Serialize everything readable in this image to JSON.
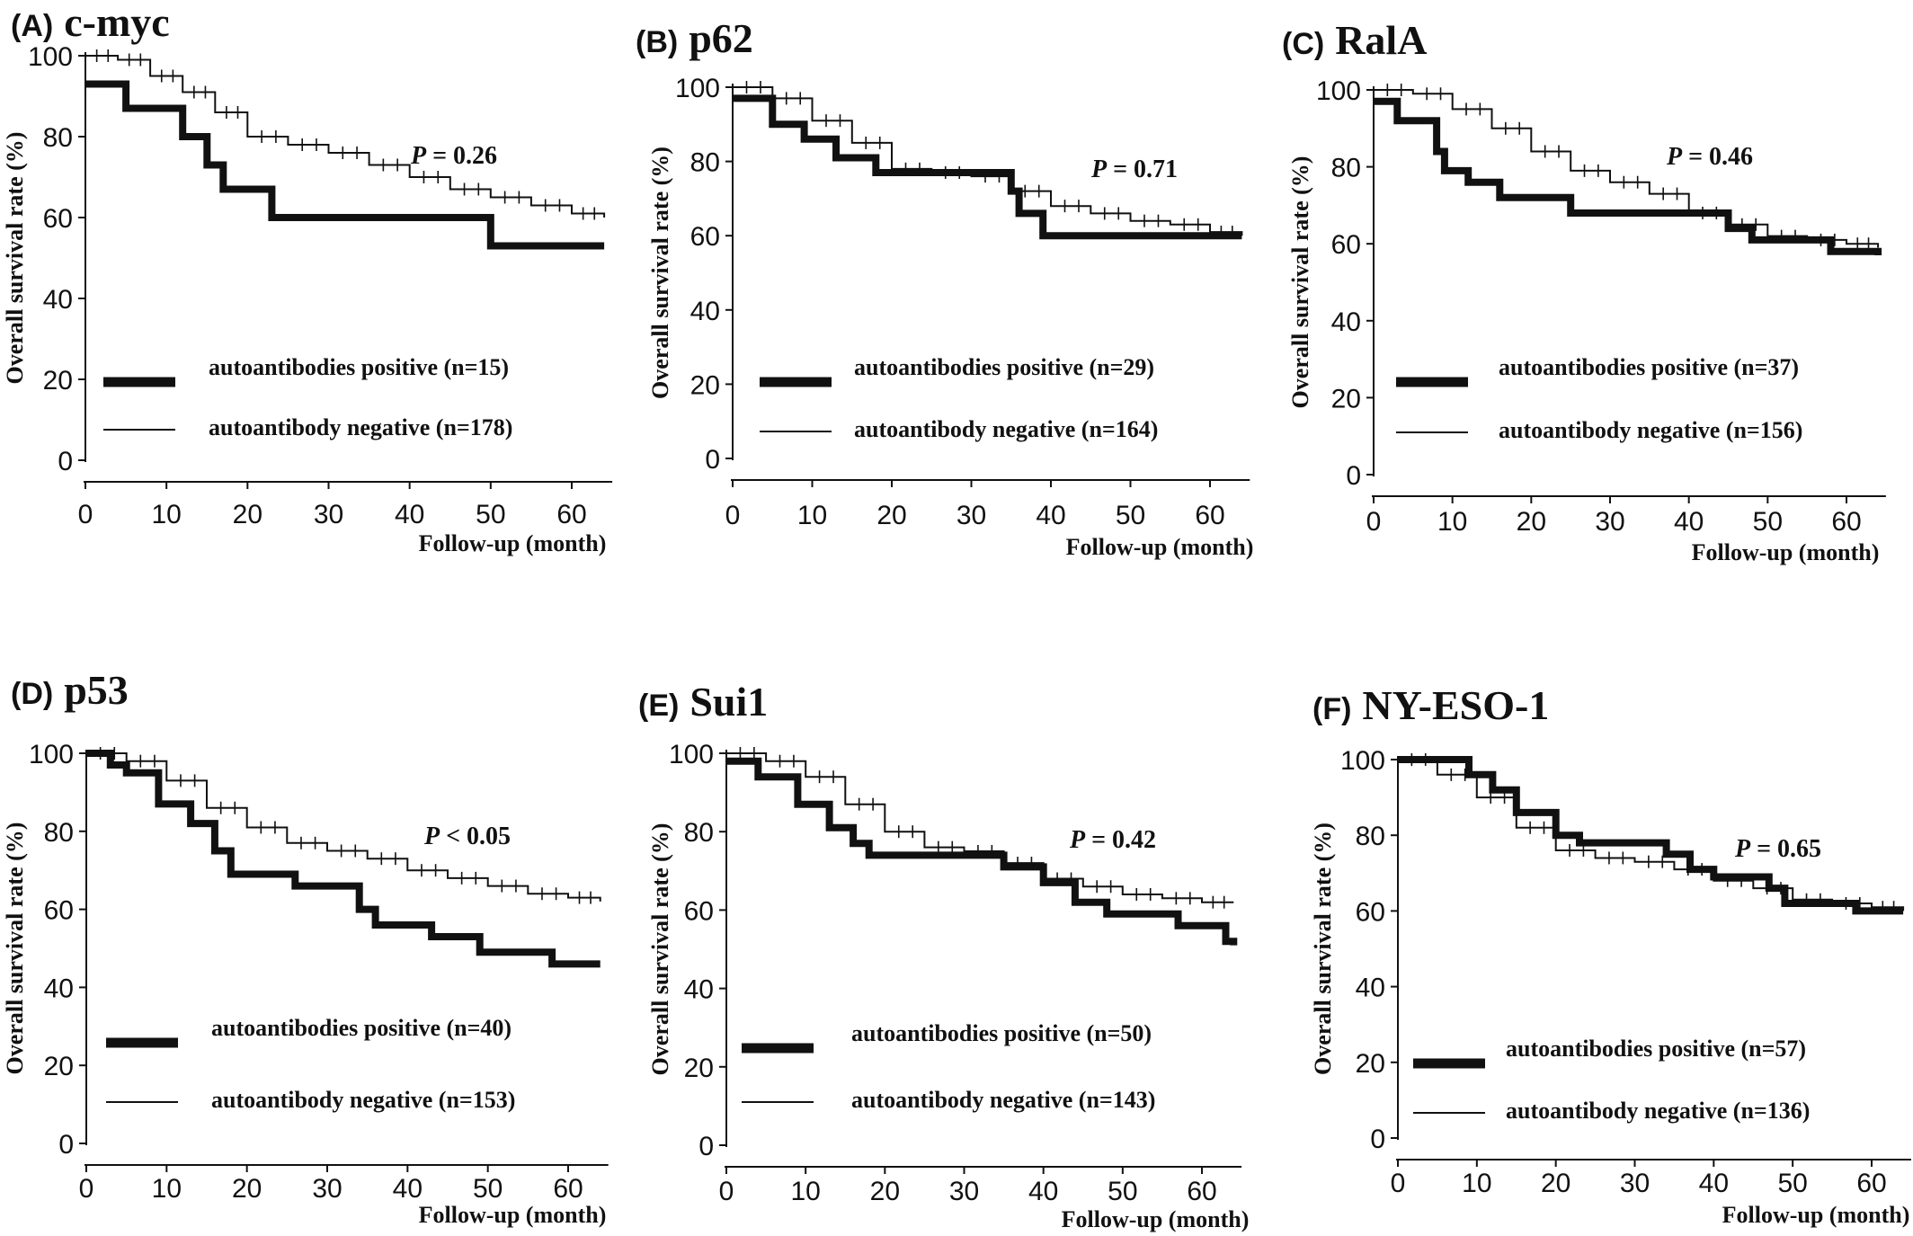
{
  "figure": {
    "y_axis_label": "Overall survival rate (%)",
    "x_axis_label": "Follow-up (month)",
    "y_ticks": [
      0,
      20,
      40,
      60,
      80,
      100
    ],
    "x_ticks": [
      0,
      10,
      20,
      30,
      40,
      50,
      60
    ]
  },
  "chart_data": [
    {
      "type": "line",
      "panel": "(A)",
      "title": "c-myc",
      "p_value": {
        "symbol": "P",
        "text": " = 0.26"
      },
      "xlabel": "Follow-up (month)",
      "ylabel": "Overall survival rate (%)",
      "xlim": [
        0,
        65
      ],
      "ylim": [
        0,
        100
      ],
      "x_ticks": [
        "0",
        "10",
        "20",
        "30",
        "40",
        "50",
        "60"
      ],
      "y_ticks": [
        "0",
        "20",
        "40",
        "60",
        "80",
        "100"
      ],
      "series": [
        {
          "name": "autoantibodies positive (n=15)",
          "style": "thick",
          "x": [
            0,
            5,
            12,
            15,
            17,
            23,
            50,
            64
          ],
          "y": [
            93,
            87,
            80,
            73,
            67,
            60,
            53,
            53
          ]
        },
        {
          "name": "autoantibody negative (n=178)",
          "style": "thin",
          "x": [
            0,
            4,
            8,
            12,
            16,
            20,
            25,
            30,
            35,
            40,
            45,
            50,
            55,
            60,
            64
          ],
          "y": [
            100,
            99,
            95,
            91,
            86,
            80,
            78,
            76,
            73,
            70,
            67,
            65,
            63,
            61,
            60
          ]
        }
      ]
    },
    {
      "type": "line",
      "panel": "(B)",
      "title": "p62",
      "p_value": {
        "symbol": "P",
        "text": " = 0.71"
      },
      "xlabel": "Follow-up (month)",
      "ylabel": "Overall survival rate (%)",
      "xlim": [
        0,
        65
      ],
      "ylim": [
        0,
        100
      ],
      "x_ticks": [
        "0",
        "10",
        "20",
        "30",
        "40",
        "50",
        "60"
      ],
      "y_ticks": [
        "0",
        "20",
        "40",
        "60",
        "80",
        "100"
      ],
      "series": [
        {
          "name": "autoantibodies positive (n=29)",
          "style": "thick",
          "x": [
            0,
            5,
            9,
            13,
            18,
            35,
            36,
            39,
            64
          ],
          "y": [
            97,
            90,
            86,
            81,
            77,
            72,
            66,
            60,
            60
          ]
        },
        {
          "name": "autoantibody negative (n=164)",
          "style": "thin",
          "x": [
            0,
            5,
            10,
            15,
            20,
            25,
            30,
            35,
            40,
            45,
            50,
            55,
            60,
            64
          ],
          "y": [
            100,
            97,
            91,
            85,
            78,
            77,
            76,
            72,
            68,
            66,
            64,
            63,
            61,
            60
          ]
        }
      ]
    },
    {
      "type": "line",
      "panel": "(C)",
      "title": "RalA",
      "p_value": {
        "symbol": "P",
        "text": " = 0.46"
      },
      "xlabel": "Follow-up (month)",
      "ylabel": "Overall survival rate (%)",
      "xlim": [
        0,
        65
      ],
      "ylim": [
        0,
        100
      ],
      "x_ticks": [
        "0",
        "10",
        "20",
        "30",
        "40",
        "50",
        "60"
      ],
      "y_ticks": [
        "0",
        "20",
        "40",
        "60",
        "80",
        "100"
      ],
      "series": [
        {
          "name": "autoantibodies positive (n=37)",
          "style": "thick",
          "x": [
            0,
            3,
            8,
            9,
            12,
            16,
            25,
            45,
            48,
            58,
            64
          ],
          "y": [
            97,
            92,
            84,
            79,
            76,
            72,
            68,
            64,
            61,
            58,
            57
          ]
        },
        {
          "name": "autoantibody negative (n=156)",
          "style": "thin",
          "x": [
            0,
            5,
            10,
            15,
            20,
            25,
            30,
            35,
            40,
            45,
            50,
            55,
            60,
            64
          ],
          "y": [
            100,
            99,
            95,
            90,
            84,
            79,
            76,
            73,
            68,
            65,
            62,
            61,
            60,
            59
          ]
        }
      ]
    },
    {
      "type": "line",
      "panel": "(D)",
      "title": "p53",
      "p_value": {
        "symbol": "P",
        "text": " < 0.05"
      },
      "xlabel": "Follow-up (month)",
      "ylabel": "Overall survival rate (%)",
      "xlim": [
        0,
        65
      ],
      "ylim": [
        0,
        100
      ],
      "x_ticks": [
        "0",
        "10",
        "20",
        "30",
        "40",
        "50",
        "60"
      ],
      "y_ticks": [
        "0",
        "20",
        "40",
        "60",
        "80",
        "100"
      ],
      "series": [
        {
          "name": "autoantibodies positive (n=40)",
          "style": "thick",
          "x": [
            0,
            3,
            5,
            9,
            13,
            16,
            18,
            26,
            34,
            36,
            43,
            49,
            58,
            64
          ],
          "y": [
            100,
            97,
            95,
            87,
            82,
            75,
            69,
            66,
            60,
            56,
            53,
            49,
            46,
            46
          ]
        },
        {
          "name": "autoantibody negative (n=153)",
          "style": "thin",
          "x": [
            0,
            5,
            10,
            15,
            20,
            25,
            30,
            35,
            40,
            45,
            50,
            55,
            60,
            64
          ],
          "y": [
            100,
            98,
            93,
            86,
            81,
            77,
            75,
            73,
            70,
            68,
            66,
            64,
            63,
            62
          ]
        }
      ]
    },
    {
      "type": "line",
      "panel": "(E)",
      "title": "Sui1",
      "p_value": {
        "symbol": "P",
        "text": " = 0.42"
      },
      "xlabel": "Follow-up (month)",
      "ylabel": "Overall survival rate (%)",
      "xlim": [
        0,
        65
      ],
      "ylim": [
        0,
        100
      ],
      "x_ticks": [
        "0",
        "10",
        "20",
        "30",
        "40",
        "50",
        "60"
      ],
      "y_ticks": [
        "0",
        "20",
        "40",
        "60",
        "80",
        "100"
      ],
      "series": [
        {
          "name": "autoantibodies positive (n=50)",
          "style": "thick",
          "x": [
            0,
            4,
            9,
            13,
            16,
            18,
            35,
            40,
            44,
            48,
            57,
            63,
            64
          ],
          "y": [
            98,
            94,
            87,
            81,
            77,
            74,
            71,
            67,
            62,
            59,
            56,
            52,
            51
          ]
        },
        {
          "name": "autoantibody negative (n=143)",
          "style": "thin",
          "x": [
            0,
            5,
            10,
            15,
            20,
            25,
            30,
            35,
            40,
            45,
            50,
            55,
            60,
            64
          ],
          "y": [
            100,
            98,
            94,
            87,
            80,
            76,
            75,
            72,
            68,
            66,
            64,
            63,
            62,
            62
          ]
        }
      ]
    },
    {
      "type": "line",
      "panel": "(F)",
      "title": "NY-ESO-1",
      "p_value": {
        "symbol": "P",
        "text": " = 0.65"
      },
      "xlabel": "Follow-up (month)",
      "ylabel": "Overall survival rate (%)",
      "xlim": [
        0,
        65
      ],
      "ylim": [
        0,
        100
      ],
      "x_ticks": [
        "0",
        "10",
        "20",
        "30",
        "40",
        "50",
        "60"
      ],
      "y_ticks": [
        "0",
        "20",
        "40",
        "60",
        "80",
        "100"
      ],
      "series": [
        {
          "name": "autoantibodies positive (n=57)",
          "style": "thick",
          "x": [
            0,
            9,
            12,
            15,
            20,
            23,
            34,
            37,
            40,
            47,
            49,
            58,
            64
          ],
          "y": [
            100,
            96,
            92,
            86,
            80,
            78,
            75,
            71,
            69,
            66,
            62,
            60,
            60
          ]
        },
        {
          "name": "autoantibody negative (n=136)",
          "style": "thin",
          "x": [
            0,
            5,
            10,
            15,
            20,
            25,
            30,
            35,
            40,
            45,
            50,
            55,
            60,
            64
          ],
          "y": [
            100,
            96,
            90,
            82,
            76,
            74,
            73,
            71,
            68,
            66,
            63,
            62,
            61,
            60
          ]
        }
      ]
    }
  ]
}
